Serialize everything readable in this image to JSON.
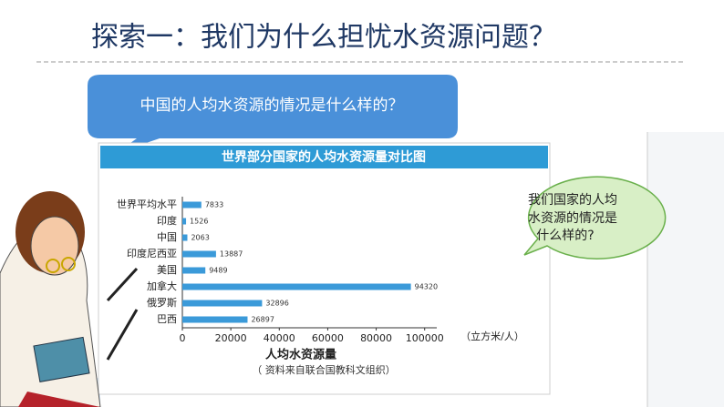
{
  "header": {
    "title": "探索一：我们为什么担忧水资源问题？"
  },
  "callouts": {
    "question": "中国的人均水资源的情况是什么样的？",
    "thought": [
      "我们国家的人均",
      "水资源的情况是",
      "什么样的?"
    ]
  },
  "chart_data": {
    "type": "hbar",
    "title": "世界部分国家的人均水资源量对比图",
    "categories": [
      "世界平均水平",
      "印度",
      "中国",
      "印度尼西亚",
      "美国",
      "加拿大",
      "俄罗斯",
      "巴西"
    ],
    "values": [
      7833,
      1526,
      2063,
      13887,
      9489,
      94320,
      32896,
      26897
    ],
    "color": "#3b9ad9",
    "xlim": [
      0,
      105000
    ],
    "xticks": [
      0,
      20000,
      40000,
      60000,
      80000,
      100000
    ],
    "unit": "（立方米/人）",
    "xlabel": "人均水资源量",
    "note": "（ 资料来自联合国教科文组织）"
  }
}
